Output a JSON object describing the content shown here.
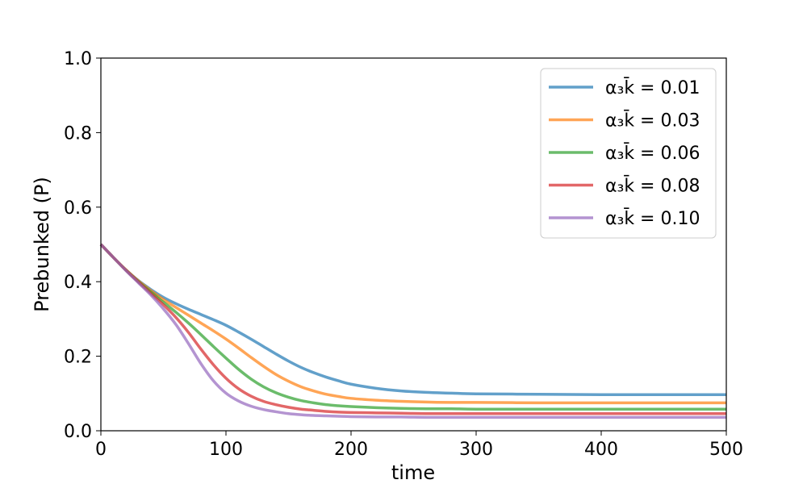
{
  "chart_data": {
    "type": "line",
    "title": "",
    "xlabel": "time",
    "ylabel": "Prebunked (P)",
    "xlim": [
      0,
      500
    ],
    "ylim": [
      0,
      1.0
    ],
    "xticks": [
      "0",
      "100",
      "200",
      "300",
      "400",
      "500"
    ],
    "yticks": [
      "0.0",
      "0.2",
      "0.4",
      "0.6",
      "0.8",
      "1.0"
    ],
    "xtick_values": [
      0,
      100,
      200,
      300,
      400,
      500
    ],
    "ytick_values": [
      0,
      0.2,
      0.4,
      0.6,
      0.8,
      1.0
    ],
    "grid": false,
    "legend_position": "top-right",
    "series": [
      {
        "name": "α₃k̄ = 0.01",
        "color": "#1f77b4",
        "x": [
          0,
          10,
          20,
          30,
          40,
          50,
          60,
          70,
          80,
          90,
          100,
          110,
          120,
          130,
          140,
          150,
          160,
          170,
          180,
          190,
          200,
          220,
          240,
          260,
          280,
          300,
          350,
          400,
          450,
          500
        ],
        "y": [
          0.5,
          0.465,
          0.432,
          0.403,
          0.379,
          0.358,
          0.341,
          0.326,
          0.312,
          0.298,
          0.283,
          0.265,
          0.246,
          0.226,
          0.206,
          0.187,
          0.17,
          0.156,
          0.144,
          0.134,
          0.125,
          0.114,
          0.107,
          0.103,
          0.101,
          0.099,
          0.098,
          0.097,
          0.097,
          0.097
        ]
      },
      {
        "name": "α₃k̄ = 0.03",
        "color": "#ff7f0e",
        "x": [
          0,
          10,
          20,
          30,
          40,
          50,
          60,
          70,
          80,
          90,
          100,
          110,
          120,
          130,
          140,
          150,
          160,
          170,
          180,
          190,
          200,
          220,
          240,
          260,
          280,
          300,
          350,
          400,
          450,
          500
        ],
        "y": [
          0.5,
          0.465,
          0.432,
          0.402,
          0.376,
          0.352,
          0.331,
          0.31,
          0.289,
          0.268,
          0.246,
          0.222,
          0.197,
          0.173,
          0.151,
          0.133,
          0.118,
          0.107,
          0.098,
          0.092,
          0.087,
          0.082,
          0.079,
          0.077,
          0.076,
          0.076,
          0.075,
          0.075,
          0.075,
          0.075
        ]
      },
      {
        "name": "α₃k̄ = 0.06",
        "color": "#2ca02c",
        "x": [
          0,
          10,
          20,
          30,
          40,
          50,
          60,
          70,
          80,
          90,
          100,
          110,
          120,
          130,
          140,
          150,
          160,
          170,
          180,
          190,
          200,
          220,
          240,
          260,
          280,
          300,
          350,
          400,
          450,
          500
        ],
        "y": [
          0.5,
          0.465,
          0.431,
          0.4,
          0.372,
          0.345,
          0.318,
          0.289,
          0.258,
          0.226,
          0.195,
          0.165,
          0.139,
          0.118,
          0.102,
          0.09,
          0.081,
          0.075,
          0.07,
          0.067,
          0.065,
          0.062,
          0.06,
          0.059,
          0.059,
          0.058,
          0.058,
          0.058,
          0.058,
          0.058
        ]
      },
      {
        "name": "α₃k̄ = 0.08",
        "color": "#d62728",
        "x": [
          0,
          10,
          20,
          30,
          40,
          50,
          60,
          70,
          80,
          90,
          100,
          110,
          120,
          130,
          140,
          150,
          160,
          170,
          180,
          190,
          200,
          220,
          240,
          260,
          280,
          300,
          350,
          400,
          450,
          500
        ],
        "y": [
          0.5,
          0.465,
          0.431,
          0.399,
          0.368,
          0.338,
          0.304,
          0.264,
          0.219,
          0.177,
          0.141,
          0.113,
          0.093,
          0.079,
          0.07,
          0.063,
          0.058,
          0.055,
          0.052,
          0.05,
          0.049,
          0.048,
          0.047,
          0.046,
          0.046,
          0.046,
          0.046,
          0.046,
          0.046,
          0.046
        ]
      },
      {
        "name": "α₃k̄ = 0.10",
        "color": "#9467bd",
        "x": [
          0,
          10,
          20,
          30,
          40,
          50,
          60,
          70,
          80,
          90,
          100,
          110,
          120,
          130,
          140,
          150,
          160,
          170,
          180,
          190,
          200,
          220,
          240,
          260,
          280,
          300,
          350,
          400,
          450,
          500
        ],
        "y": [
          0.5,
          0.465,
          0.43,
          0.397,
          0.364,
          0.327,
          0.285,
          0.234,
          0.18,
          0.134,
          0.101,
          0.08,
          0.066,
          0.057,
          0.051,
          0.046,
          0.043,
          0.041,
          0.04,
          0.039,
          0.038,
          0.037,
          0.037,
          0.036,
          0.036,
          0.036,
          0.036,
          0.036,
          0.036,
          0.036
        ]
      }
    ]
  }
}
